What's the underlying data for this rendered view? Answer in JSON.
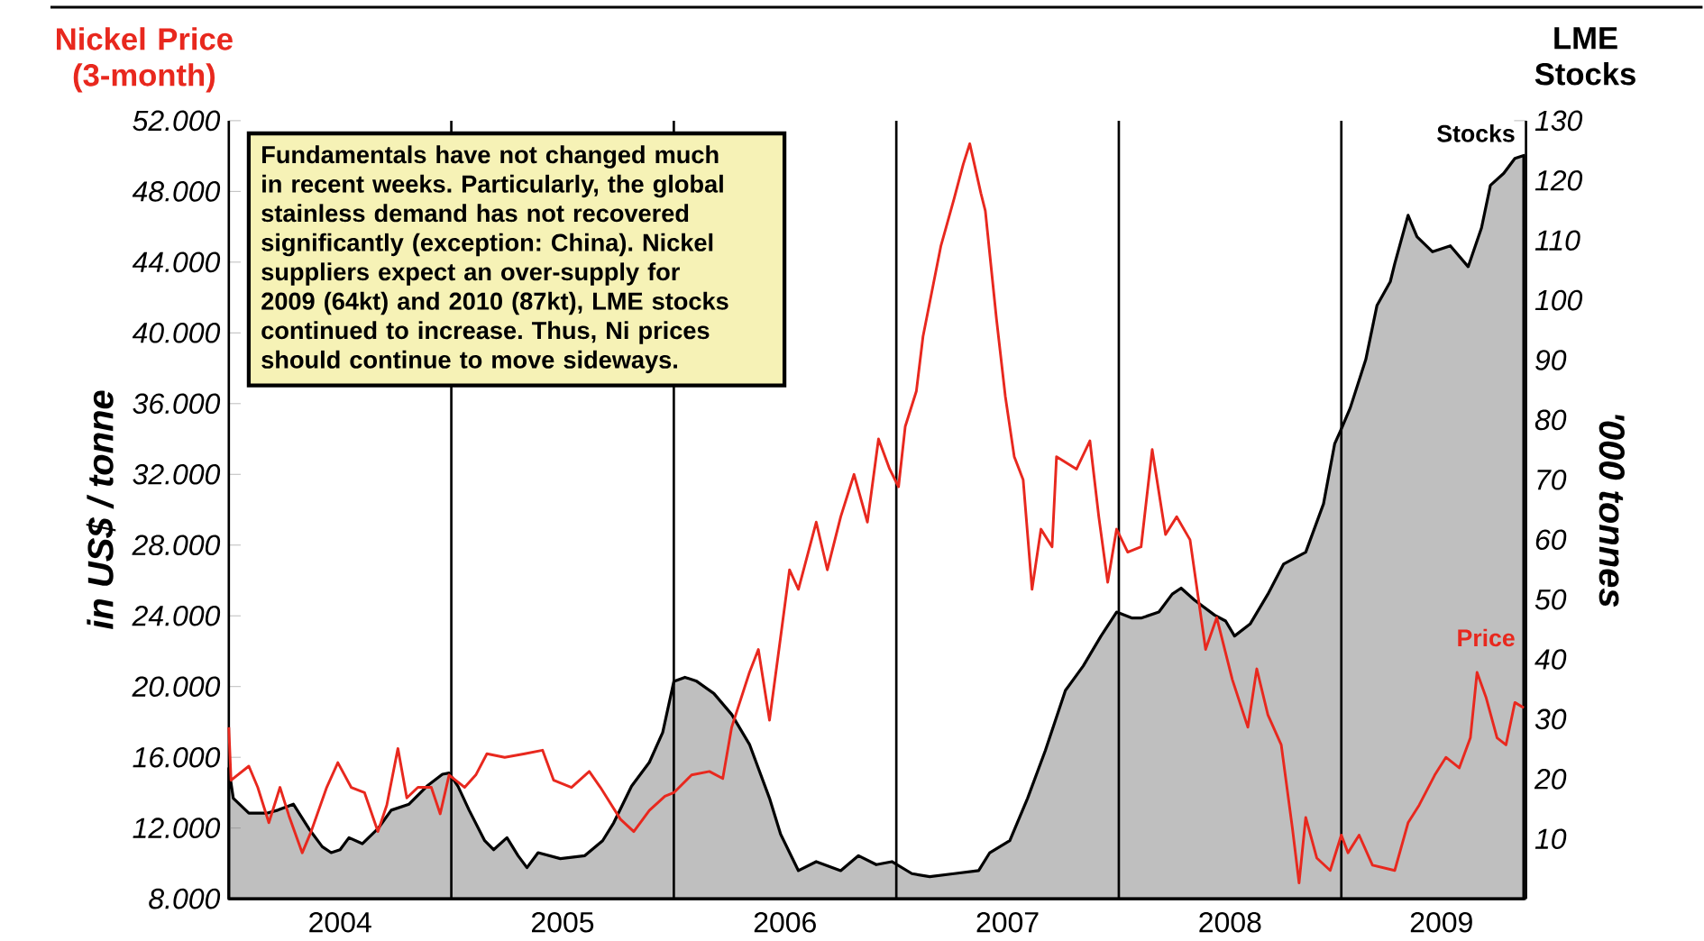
{
  "chart_data": {
    "type": "line",
    "annotations": [
      "Nickel Price (3-month)",
      "LME Stocks",
      "Fundamentals have not changed much in recent weeks. Particularly, the global stainless demand has not recovered significantly (exception: China). Nickel suppliers expect an over-supply for 2009 (64kt) and 2010 (87kt), LME stocks continued to increase. Thus, Ni prices should continue to  move sideways."
    ],
    "ylabel": "in US$ / tonne",
    "y2label": "'000 tonnes",
    "xlim": [
      2004,
      2009.83
    ],
    "xticks": [
      {
        "value": 2004.5,
        "label": "2004"
      },
      {
        "value": 2005.5,
        "label": "2005"
      },
      {
        "value": 2006.5,
        "label": "2006"
      },
      {
        "value": 2007.5,
        "label": "2007"
      },
      {
        "value": 2008.5,
        "label": "2008"
      },
      {
        "value": 2009.45,
        "label": "2009"
      }
    ],
    "ylim": [
      8000,
      52000
    ],
    "yticks": [
      {
        "value": 8000,
        "label": "8.000"
      },
      {
        "value": 12000,
        "label": "12.000"
      },
      {
        "value": 16000,
        "label": "16.000"
      },
      {
        "value": 20000,
        "label": "20.000"
      },
      {
        "value": 24000,
        "label": "24.000"
      },
      {
        "value": 28000,
        "label": "28.000"
      },
      {
        "value": 32000,
        "label": "32.000"
      },
      {
        "value": 36000,
        "label": "36.000"
      },
      {
        "value": 40000,
        "label": "40.000"
      },
      {
        "value": 44000,
        "label": "44.000"
      },
      {
        "value": 48000,
        "label": "48.000"
      },
      {
        "value": 52000,
        "label": "52.000"
      }
    ],
    "y2lim": [
      0,
      130
    ],
    "y2ticks": [
      {
        "value": 0,
        "label": null
      },
      10,
      20,
      30,
      40,
      50,
      60,
      70,
      80,
      90,
      100,
      110,
      120,
      130
    ],
    "ref_lines": [
      {
        "axis": "x",
        "value": 2005,
        "color": "#000000"
      },
      {
        "axis": "x",
        "value": 2006,
        "color": "#000000"
      },
      {
        "axis": "x",
        "value": 2007,
        "color": "#000000"
      },
      {
        "axis": "x",
        "value": 2008,
        "color": "#000000"
      },
      {
        "axis": "x",
        "value": 2009,
        "color": "#000000"
      }
    ],
    "grid": false,
    "marker": "none",
    "series": [
      {
        "name": "Stocks",
        "type": "area",
        "axis": "y2",
        "color": "#000000",
        "x": [
          2004.0,
          2004.02,
          2004.09,
          2004.17,
          2004.22,
          2004.29,
          2004.36,
          2004.42,
          2004.46,
          2004.5,
          2004.54,
          2004.6,
          2004.67,
          2004.73,
          2004.81,
          2004.89,
          2004.96,
          2004.99,
          2005.03,
          2005.08,
          2005.15,
          2005.19,
          2005.25,
          2005.3,
          2005.34,
          2005.39,
          2005.49,
          2005.6,
          2005.68,
          2005.73,
          2005.81,
          2005.89,
          2005.95,
          2006.0,
          2006.05,
          2006.1,
          2006.18,
          2006.26,
          2006.34,
          2006.43,
          2006.48,
          2006.56,
          2006.64,
          2006.75,
          2006.83,
          2006.91,
          2006.98,
          2007.07,
          2007.15,
          2007.26,
          2007.37,
          2007.42,
          2007.51,
          2007.59,
          2007.67,
          2007.76,
          2007.84,
          2007.92,
          2007.99,
          2008.06,
          2008.1,
          2008.18,
          2008.24,
          2008.28,
          2008.34,
          2008.43,
          2008.48,
          2008.52,
          2008.59,
          2008.67,
          2008.74,
          2008.84,
          2008.92,
          2008.97,
          2009.0,
          2009.04,
          2009.11,
          2009.16,
          2009.22,
          2009.24,
          2009.3,
          2009.34,
          2009.41,
          2009.49,
          2009.57,
          2009.63,
          2009.67,
          2009.73,
          2009.78,
          2009.82
        ],
        "values": [
          21.8,
          16.8,
          14.3,
          14.3,
          14.8,
          15.8,
          11.7,
          8.7,
          7.7,
          8.2,
          10.2,
          9.2,
          11.7,
          14.8,
          15.8,
          18.8,
          20.8,
          21.0,
          18.8,
          14.8,
          9.7,
          8.2,
          10.2,
          7.2,
          5.2,
          7.7,
          6.7,
          7.2,
          9.7,
          12.7,
          18.8,
          22.8,
          27.8,
          36.3,
          37.0,
          36.4,
          34.3,
          30.8,
          25.8,
          16.8,
          10.8,
          4.7,
          6.2,
          4.7,
          7.2,
          5.7,
          6.2,
          4.2,
          3.7,
          4.2,
          4.7,
          7.7,
          9.7,
          16.8,
          24.8,
          34.8,
          38.9,
          43.9,
          47.9,
          46.9,
          46.9,
          47.9,
          50.9,
          51.9,
          49.9,
          47.4,
          46.4,
          43.9,
          45.9,
          50.9,
          55.9,
          57.9,
          66.0,
          76.0,
          78.5,
          82.0,
          90.1,
          99.1,
          103.1,
          106.1,
          114.2,
          110.6,
          108.1,
          109.1,
          105.6,
          112.1,
          119.2,
          121.2,
          123.7,
          124.2
        ]
      },
      {
        "name": "Price",
        "color": "#e8281e",
        "x": [
          2004.0,
          2004.01,
          2004.09,
          2004.13,
          2004.18,
          2004.23,
          2004.27,
          2004.33,
          2004.37,
          2004.44,
          2004.49,
          2004.55,
          2004.61,
          2004.67,
          2004.71,
          2004.76,
          2004.8,
          2004.85,
          2004.91,
          2004.95,
          2004.99,
          2005.06,
          2005.11,
          2005.16,
          2005.24,
          2005.33,
          2005.41,
          2005.46,
          2005.54,
          2005.62,
          2005.67,
          2005.76,
          2005.82,
          2005.89,
          2005.96,
          2006.0,
          2006.08,
          2006.16,
          2006.22,
          2006.26,
          2006.34,
          2006.38,
          2006.43,
          2006.48,
          2006.52,
          2006.56,
          2006.64,
          2006.69,
          2006.75,
          2006.81,
          2006.87,
          2006.92,
          2006.97,
          2007.01,
          2007.04,
          2007.09,
          2007.12,
          2007.2,
          2007.26,
          2007.3,
          2007.33,
          2007.38,
          2007.4,
          2007.45,
          2007.49,
          2007.53,
          2007.57,
          2007.61,
          2007.65,
          2007.7,
          2007.72,
          2007.81,
          2007.87,
          2007.91,
          2007.95,
          2007.99,
          2008.04,
          2008.1,
          2008.15,
          2008.21,
          2008.26,
          2008.32,
          2008.39,
          2008.44,
          2008.51,
          2008.58,
          2008.62,
          2008.67,
          2008.73,
          2008.78,
          2008.81,
          2008.84,
          2008.89,
          2008.95,
          2009.0,
          2009.03,
          2009.08,
          2009.14,
          2009.24,
          2009.3,
          2009.35,
          2009.42,
          2009.47,
          2009.53,
          2009.58,
          2009.61,
          2009.65,
          2009.7,
          2009.74,
          2009.78,
          2009.82
        ],
        "values": [
          17700,
          14700,
          15500,
          14300,
          12300,
          14300,
          12700,
          10600,
          11800,
          14300,
          15700,
          14300,
          14000,
          11800,
          13300,
          16500,
          13700,
          14300,
          14300,
          12800,
          15000,
          14300,
          15000,
          16200,
          16000,
          16200,
          16400,
          14700,
          14300,
          15200,
          14300,
          12500,
          11800,
          13000,
          13800,
          14000,
          15000,
          15200,
          14800,
          17700,
          20800,
          22100,
          18100,
          22800,
          26600,
          25500,
          29300,
          26600,
          29600,
          32000,
          29300,
          34000,
          32300,
          31300,
          34700,
          36700,
          39800,
          44900,
          47600,
          49500,
          50700,
          47900,
          46900,
          40800,
          36400,
          33000,
          31700,
          25500,
          28900,
          27900,
          33000,
          32300,
          33900,
          29600,
          25900,
          28900,
          27600,
          27900,
          33400,
          28600,
          29600,
          28300,
          22100,
          23900,
          20400,
          17700,
          21000,
          18400,
          16700,
          12000,
          8900,
          12600,
          10300,
          9600,
          11600,
          10600,
          11600,
          9900,
          9600,
          12300,
          13300,
          15000,
          16000,
          15400,
          17100,
          20800,
          19400,
          17100,
          16700,
          19100,
          18800
        ]
      }
    ]
  }
}
